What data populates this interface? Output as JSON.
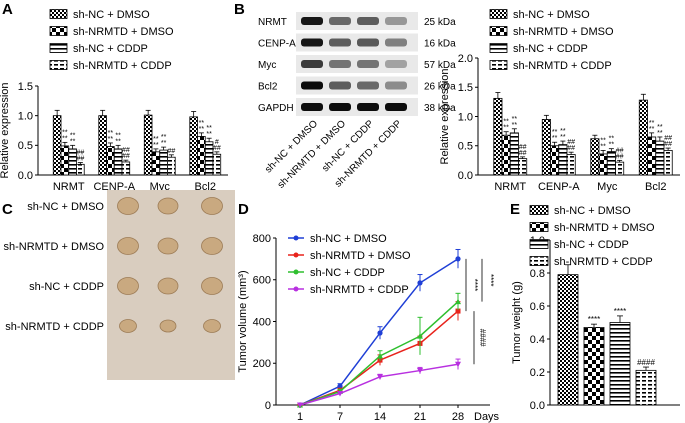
{
  "panels": {
    "A": "A",
    "B": "B",
    "C": "C",
    "D": "D",
    "E": "E"
  },
  "groups": [
    "sh-NC + DMSO",
    "sh-NRMTD + DMSO",
    "sh-NC + CDDP",
    "sh-NRMTD + CDDP"
  ],
  "colors": {
    "ink": "#000000",
    "line1": "#1f3fd6",
    "line2": "#e8231c",
    "line3": "#2fbf2f",
    "line4": "#b830e0"
  },
  "blot": {
    "proteins": [
      "NRMT",
      "CENP-A",
      "Myc",
      "Bcl2",
      "GAPDH"
    ],
    "sizes": [
      "25 kDa",
      "16 kDa",
      "57 kDa",
      "26 kDa",
      "38 kDa"
    ]
  },
  "photo": {
    "rows": [
      "sh-NC + DMSO",
      "sh-NRMTD + DMSO",
      "sh-NC + CDDP",
      "sh-NRMTD + CDDP"
    ]
  },
  "chart_data": [
    {
      "panel": "A",
      "type": "bar",
      "categories": [
        "NRMT",
        "CENP-A",
        "Myc",
        "Bcl2"
      ],
      "ylabel": "Relative expression",
      "ylim": [
        0,
        1.5
      ],
      "yticks": [
        "0.0",
        "0.5",
        "1.0",
        "1.5"
      ],
      "series": [
        {
          "name": "sh-NC + DMSO",
          "values": [
            1.0,
            1.0,
            1.01,
            0.98
          ],
          "errors": [
            0.09,
            0.09,
            0.08,
            0.09
          ],
          "marks": [
            "",
            "",
            "",
            ""
          ]
        },
        {
          "name": "sh-NRMTD + DMSO",
          "values": [
            0.49,
            0.48,
            0.39,
            0.65
          ],
          "errors": [
            0.06,
            0.06,
            0.05,
            0.06
          ],
          "marks": [
            "**\n**",
            "**\n**",
            "**\n**",
            "**\n**"
          ]
        },
        {
          "name": "sh-NC + CDDP",
          "values": [
            0.44,
            0.44,
            0.42,
            0.56
          ],
          "errors": [
            0.06,
            0.06,
            0.05,
            0.06
          ],
          "marks": [
            "**\n**",
            "**\n**",
            "**\n**",
            "**\n**"
          ]
        },
        {
          "name": "sh-NRMTD + CDDP",
          "values": [
            0.18,
            0.22,
            0.3,
            0.35
          ],
          "errors": [
            0.03,
            0.03,
            0.04,
            0.04
          ],
          "marks": [
            "##\n##",
            "##\n##",
            "##",
            "#\n##"
          ]
        }
      ]
    },
    {
      "panel": "B",
      "type": "bar",
      "categories": [
        "NRMT",
        "CENP-A",
        "Myc",
        "Bcl2"
      ],
      "ylabel": "Relative expression",
      "ylim": [
        0,
        2.0
      ],
      "yticks": [
        "0.0",
        "0.5",
        "1.0",
        "1.5",
        "2.0"
      ],
      "series": [
        {
          "name": "sh-NC + DMSO",
          "values": [
            1.31,
            0.95,
            0.62,
            1.28
          ],
          "errors": [
            0.1,
            0.07,
            0.06,
            0.1
          ],
          "marks": [
            "",
            "",
            "",
            ""
          ]
        },
        {
          "name": "sh-NRMTD + DMSO",
          "values": [
            0.68,
            0.5,
            0.36,
            0.65
          ],
          "errors": [
            0.06,
            0.06,
            0.06,
            0.07
          ],
          "marks": [
            "**\n**",
            "**\n**",
            "**\n**",
            "**\n**"
          ]
        },
        {
          "name": "sh-NC + CDDP",
          "values": [
            0.72,
            0.52,
            0.4,
            0.58
          ],
          "errors": [
            0.07,
            0.06,
            0.05,
            0.07
          ],
          "marks": [
            "**\n**",
            "**\n**",
            "**\n**",
            "**\n**"
          ]
        },
        {
          "name": "sh-NRMTD + CDDP",
          "values": [
            0.28,
            0.35,
            0.22,
            0.42
          ],
          "errors": [
            0.03,
            0.04,
            0.03,
            0.04
          ],
          "marks": [
            "##\n##",
            "##\n##",
            "##\n##",
            "##\n##"
          ]
        }
      ]
    },
    {
      "panel": "D",
      "type": "line",
      "x": [
        1,
        7,
        14,
        21,
        28
      ],
      "xticks": [
        "1",
        "7",
        "14",
        "21",
        "28"
      ],
      "xunit": "Days",
      "ylabel": "Tumor volume (mm³)",
      "ylim": [
        0,
        800
      ],
      "yticks": [
        "0",
        "200",
        "400",
        "600",
        "800"
      ],
      "series": [
        {
          "name": "sh-NC + DMSO",
          "values": [
            0,
            90,
            345,
            585,
            700
          ],
          "errors": [
            0,
            12,
            30,
            40,
            45
          ]
        },
        {
          "name": "sh-NRMTD + DMSO",
          "values": [
            0,
            70,
            215,
            295,
            450
          ],
          "errors": [
            0,
            10,
            25,
            35,
            45
          ]
        },
        {
          "name": "sh-NC + CDDP",
          "values": [
            0,
            65,
            235,
            330,
            495
          ],
          "errors": [
            0,
            10,
            25,
            90,
            40
          ]
        },
        {
          "name": "sh-NRMTD + CDDP",
          "values": [
            0,
            55,
            135,
            165,
            195
          ],
          "errors": [
            0,
            8,
            12,
            15,
            25
          ]
        }
      ],
      "annotations": [
        "****",
        "****",
        "####"
      ]
    },
    {
      "panel": "E",
      "type": "bar",
      "ylabel": "Tumor weight (g)",
      "ylim": [
        0,
        1.0
      ],
      "yticks": [
        "0.0",
        "0.2",
        "0.4",
        "0.6",
        "0.8",
        "1.0"
      ],
      "series": [
        {
          "name": "sh-NC + DMSO",
          "value": 0.79,
          "error": 0.06,
          "mark": ""
        },
        {
          "name": "sh-NRMTD + DMSO",
          "value": 0.47,
          "error": 0.02,
          "mark": "****"
        },
        {
          "name": "sh-NC + CDDP",
          "value": 0.5,
          "error": 0.04,
          "mark": "****"
        },
        {
          "name": "sh-NRMTD + CDDP",
          "value": 0.21,
          "error": 0.02,
          "mark": "####"
        }
      ]
    }
  ]
}
